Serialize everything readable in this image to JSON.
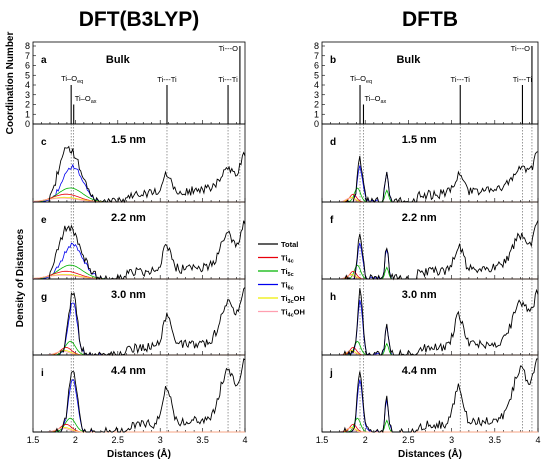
{
  "chart_data": {
    "type": "line",
    "columns": [
      {
        "title": "DFT(B3LYP)",
        "panels": [
          {
            "letter": "a",
            "label": "Bulk",
            "kind": "bulk"
          },
          {
            "letter": "c",
            "label": "1.5 nm",
            "kind": "rdf"
          },
          {
            "letter": "e",
            "label": "2.2 nm",
            "kind": "rdf"
          },
          {
            "letter": "g",
            "label": "3.0 nm",
            "kind": "rdf"
          },
          {
            "letter": "i",
            "label": "4.4 nm",
            "kind": "rdf"
          }
        ]
      },
      {
        "title": "DFTB",
        "panels": [
          {
            "letter": "b",
            "label": "Bulk",
            "kind": "bulk"
          },
          {
            "letter": "d",
            "label": "1.5 nm",
            "kind": "rdf"
          },
          {
            "letter": "f",
            "label": "2.2 nm",
            "kind": "rdf"
          },
          {
            "letter": "h",
            "label": "3.0 nm",
            "kind": "rdf"
          },
          {
            "letter": "j",
            "label": "4.4 nm",
            "kind": "rdf"
          }
        ]
      }
    ],
    "xlabel": "Distances (Å)",
    "xlim": [
      1.5,
      4.0
    ],
    "xticks": [
      "1.5",
      "2",
      "2.5",
      "3",
      "3.5",
      "4"
    ],
    "bulk_ylabel": "Coordination Number",
    "bulk_ylim": [
      0,
      8
    ],
    "bulk_yticks": [
      "0",
      "1",
      "2",
      "3",
      "4",
      "5",
      "6",
      "7",
      "8"
    ],
    "rdf_ylabel": "Density of Distances",
    "bulk_lines": [
      {
        "name": "Ti–O",
        "sub": "eq",
        "x": 1.95,
        "cn": 4
      },
      {
        "name": "Ti–O",
        "sub": "ax",
        "x": 1.98,
        "cn": 2
      },
      {
        "name": "Ti---Ti",
        "sub": "",
        "x": 3.08,
        "cn": 4
      },
      {
        "name": "Ti---Ti",
        "sub": "",
        "x": 3.8,
        "cn": 4
      },
      {
        "name": "Ti---O",
        "sub": "",
        "x": 3.94,
        "cn": 8
      }
    ],
    "dftb_bulk_x": [
      1.94,
      1.98,
      3.1,
      3.82,
      3.93
    ],
    "legend": [
      {
        "name": "Total",
        "base": "Total",
        "sub": "",
        "suffix": "",
        "color": "#000000"
      },
      {
        "name": "Ti4c",
        "base": "Ti",
        "sub": "4c",
        "suffix": "",
        "color": "#e8000b"
      },
      {
        "name": "Ti5c",
        "base": "Ti",
        "sub": "5c",
        "suffix": "",
        "color": "#00b300"
      },
      {
        "name": "Ti6c",
        "base": "Ti",
        "sub": "6c",
        "suffix": "",
        "color": "#0000ee"
      },
      {
        "name": "Ti3cOH",
        "base": "Ti",
        "sub": "3c",
        "suffix": "OH",
        "color": "#eeee00"
      },
      {
        "name": "Ti4cOH",
        "base": "Ti",
        "sub": "4c",
        "suffix": "OH",
        "color": "#ff9fb0"
      }
    ],
    "grid": false
  }
}
